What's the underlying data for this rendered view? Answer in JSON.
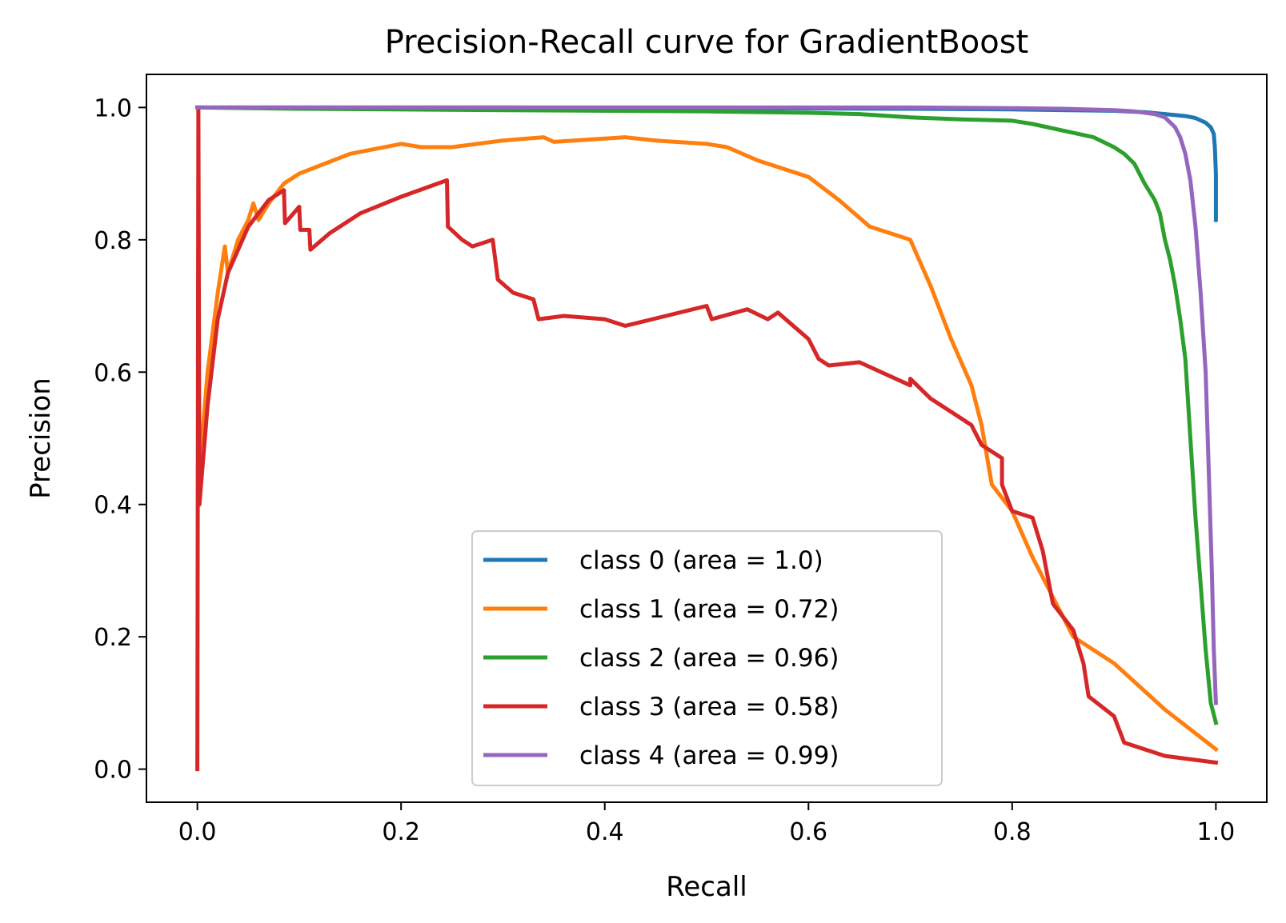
{
  "chart_data": {
    "type": "line",
    "title": "Precision-Recall curve for GradientBoost",
    "xlabel": "Recall",
    "ylabel": "Precision",
    "xlim": [
      -0.05,
      1.05
    ],
    "ylim": [
      -0.05,
      1.05
    ],
    "xticks": [
      0.0,
      0.2,
      0.4,
      0.6,
      0.8,
      1.0
    ],
    "yticks": [
      0.0,
      0.2,
      0.4,
      0.6,
      0.8,
      1.0
    ],
    "xtick_labels": [
      "0.0",
      "0.2",
      "0.4",
      "0.6",
      "0.8",
      "1.0"
    ],
    "ytick_labels": [
      "0.0",
      "0.2",
      "0.4",
      "0.6",
      "0.8",
      "1.0"
    ],
    "grid": false,
    "legend_position": "lower-center",
    "series": [
      {
        "name": "class 0 (area = 1.0)",
        "color": "#1f77b4",
        "points": [
          [
            0.0,
            1.0
          ],
          [
            0.3,
            1.0
          ],
          [
            0.5,
            0.999
          ],
          [
            0.7,
            0.998
          ],
          [
            0.8,
            0.997
          ],
          [
            0.9,
            0.995
          ],
          [
            0.93,
            0.993
          ],
          [
            0.95,
            0.99
          ],
          [
            0.97,
            0.987
          ],
          [
            0.98,
            0.984
          ],
          [
            0.99,
            0.977
          ],
          [
            0.995,
            0.97
          ],
          [
            0.998,
            0.96
          ],
          [
            0.999,
            0.94
          ],
          [
            1.0,
            0.9
          ],
          [
            1.0,
            0.83
          ]
        ]
      },
      {
        "name": "class 1 (area = 0.72)",
        "color": "#ff7f0e",
        "points": [
          [
            0.002,
            0.45
          ],
          [
            0.01,
            0.6
          ],
          [
            0.02,
            0.72
          ],
          [
            0.027,
            0.79
          ],
          [
            0.03,
            0.75
          ],
          [
            0.04,
            0.8
          ],
          [
            0.05,
            0.83
          ],
          [
            0.055,
            0.855
          ],
          [
            0.06,
            0.83
          ],
          [
            0.07,
            0.855
          ],
          [
            0.085,
            0.885
          ],
          [
            0.1,
            0.9
          ],
          [
            0.15,
            0.93
          ],
          [
            0.2,
            0.945
          ],
          [
            0.22,
            0.94
          ],
          [
            0.25,
            0.94
          ],
          [
            0.3,
            0.95
          ],
          [
            0.34,
            0.955
          ],
          [
            0.35,
            0.948
          ],
          [
            0.42,
            0.955
          ],
          [
            0.45,
            0.95
          ],
          [
            0.5,
            0.945
          ],
          [
            0.52,
            0.94
          ],
          [
            0.55,
            0.92
          ],
          [
            0.6,
            0.895
          ],
          [
            0.63,
            0.86
          ],
          [
            0.66,
            0.82
          ],
          [
            0.7,
            0.8
          ],
          [
            0.72,
            0.73
          ],
          [
            0.74,
            0.65
          ],
          [
            0.76,
            0.58
          ],
          [
            0.77,
            0.52
          ],
          [
            0.78,
            0.43
          ],
          [
            0.8,
            0.39
          ],
          [
            0.82,
            0.32
          ],
          [
            0.84,
            0.26
          ],
          [
            0.86,
            0.2
          ],
          [
            0.9,
            0.16
          ],
          [
            0.95,
            0.09
          ],
          [
            1.0,
            0.03
          ]
        ]
      },
      {
        "name": "class 2 (area = 0.96)",
        "color": "#2ca02c",
        "points": [
          [
            0.0,
            1.0
          ],
          [
            0.1,
            0.998
          ],
          [
            0.3,
            0.996
          ],
          [
            0.5,
            0.994
          ],
          [
            0.6,
            0.992
          ],
          [
            0.65,
            0.99
          ],
          [
            0.7,
            0.985
          ],
          [
            0.75,
            0.982
          ],
          [
            0.8,
            0.98
          ],
          [
            0.82,
            0.975
          ],
          [
            0.85,
            0.965
          ],
          [
            0.88,
            0.955
          ],
          [
            0.9,
            0.94
          ],
          [
            0.91,
            0.93
          ],
          [
            0.92,
            0.915
          ],
          [
            0.93,
            0.885
          ],
          [
            0.94,
            0.86
          ],
          [
            0.945,
            0.84
          ],
          [
            0.95,
            0.8
          ],
          [
            0.955,
            0.77
          ],
          [
            0.96,
            0.73
          ],
          [
            0.965,
            0.68
          ],
          [
            0.97,
            0.62
          ],
          [
            0.975,
            0.5
          ],
          [
            0.98,
            0.38
          ],
          [
            0.985,
            0.28
          ],
          [
            0.99,
            0.18
          ],
          [
            0.995,
            0.1
          ],
          [
            1.0,
            0.07
          ]
        ]
      },
      {
        "name": "class 3 (area = 0.58)",
        "color": "#d62728",
        "points": [
          [
            0.0,
            0.0
          ],
          [
            0.001,
            1.0
          ],
          [
            0.002,
            0.4
          ],
          [
            0.01,
            0.55
          ],
          [
            0.02,
            0.68
          ],
          [
            0.03,
            0.75
          ],
          [
            0.05,
            0.82
          ],
          [
            0.07,
            0.86
          ],
          [
            0.085,
            0.875
          ],
          [
            0.086,
            0.825
          ],
          [
            0.1,
            0.85
          ],
          [
            0.101,
            0.815
          ],
          [
            0.11,
            0.815
          ],
          [
            0.111,
            0.785
          ],
          [
            0.13,
            0.81
          ],
          [
            0.16,
            0.84
          ],
          [
            0.2,
            0.865
          ],
          [
            0.245,
            0.89
          ],
          [
            0.246,
            0.82
          ],
          [
            0.26,
            0.8
          ],
          [
            0.27,
            0.79
          ],
          [
            0.29,
            0.8
          ],
          [
            0.295,
            0.74
          ],
          [
            0.31,
            0.72
          ],
          [
            0.33,
            0.71
          ],
          [
            0.335,
            0.68
          ],
          [
            0.36,
            0.685
          ],
          [
            0.4,
            0.68
          ],
          [
            0.42,
            0.67
          ],
          [
            0.46,
            0.685
          ],
          [
            0.5,
            0.7
          ],
          [
            0.505,
            0.68
          ],
          [
            0.54,
            0.695
          ],
          [
            0.56,
            0.68
          ],
          [
            0.57,
            0.69
          ],
          [
            0.6,
            0.65
          ],
          [
            0.61,
            0.62
          ],
          [
            0.62,
            0.61
          ],
          [
            0.65,
            0.615
          ],
          [
            0.7,
            0.58
          ],
          [
            0.7,
            0.59
          ],
          [
            0.72,
            0.56
          ],
          [
            0.74,
            0.54
          ],
          [
            0.76,
            0.52
          ],
          [
            0.77,
            0.49
          ],
          [
            0.79,
            0.47
          ],
          [
            0.79,
            0.43
          ],
          [
            0.8,
            0.39
          ],
          [
            0.82,
            0.38
          ],
          [
            0.83,
            0.33
          ],
          [
            0.84,
            0.25
          ],
          [
            0.86,
            0.21
          ],
          [
            0.87,
            0.16
          ],
          [
            0.875,
            0.11
          ],
          [
            0.9,
            0.08
          ],
          [
            0.91,
            0.04
          ],
          [
            0.95,
            0.02
          ],
          [
            1.0,
            0.01
          ]
        ]
      },
      {
        "name": "class 4 (area = 0.99)",
        "color": "#9467bd",
        "points": [
          [
            0.0,
            1.0
          ],
          [
            0.3,
            1.0
          ],
          [
            0.5,
            1.0
          ],
          [
            0.7,
            1.0
          ],
          [
            0.8,
            0.999
          ],
          [
            0.85,
            0.998
          ],
          [
            0.9,
            0.996
          ],
          [
            0.92,
            0.994
          ],
          [
            0.94,
            0.99
          ],
          [
            0.95,
            0.985
          ],
          [
            0.96,
            0.97
          ],
          [
            0.965,
            0.955
          ],
          [
            0.97,
            0.93
          ],
          [
            0.975,
            0.89
          ],
          [
            0.98,
            0.82
          ],
          [
            0.985,
            0.72
          ],
          [
            0.99,
            0.6
          ],
          [
            0.993,
            0.45
          ],
          [
            0.996,
            0.3
          ],
          [
            0.998,
            0.18
          ],
          [
            1.0,
            0.1
          ]
        ]
      }
    ]
  }
}
